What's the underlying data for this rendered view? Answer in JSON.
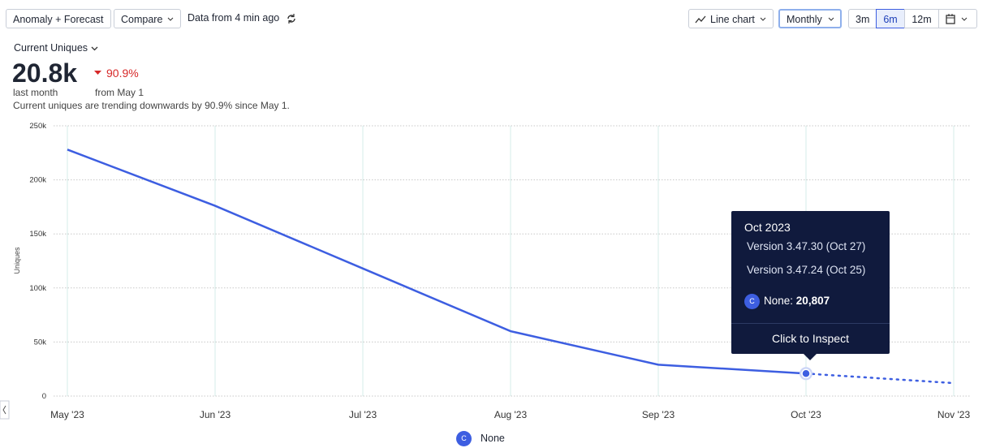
{
  "toolbar": {
    "mode": "Anomaly + Forecast",
    "compare": "Compare",
    "freshness": "Data from 4 min ago",
    "chart_type": "Line chart",
    "interval": "Monthly",
    "ranges": [
      "3m",
      "6m",
      "12m"
    ]
  },
  "metric": {
    "name": "Current Uniques",
    "value": "20.8k",
    "change": "90.9%",
    "value_caption": "last month",
    "change_caption": "from May 1",
    "summary": "Current uniques are trending downwards by 90.9% since May 1."
  },
  "tooltip": {
    "title": "Oct 2023",
    "lines": [
      "Version 3.47.30 (Oct 27)",
      "Version 3.47.24 (Oct 25)"
    ],
    "badge": "C",
    "series_label": "None:",
    "value_label": "20,807",
    "action": "Click to Inspect"
  },
  "chart_data": {
    "type": "line",
    "y_label": "Uniques",
    "categories": [
      "May '23",
      "Jun '23",
      "Jul '23",
      "Aug '23",
      "Sep '23",
      "Oct '23",
      "Nov '23"
    ],
    "series": [
      {
        "name": "None",
        "badge": "C",
        "color": "#3d5ee1",
        "values": [
          228000,
          176000,
          118000,
          60000,
          29000,
          20807,
          null
        ],
        "forecast_values": [
          null,
          null,
          null,
          null,
          null,
          20807,
          12000
        ]
      }
    ],
    "ylim": [
      0,
      250000
    ],
    "yticks": [
      0,
      {
        "value": 50000,
        "label": "50k"
      },
      {
        "value": 100000,
        "label": "100k"
      },
      {
        "value": 150000,
        "label": "150k"
      },
      {
        "value": 200000,
        "label": "200k"
      },
      {
        "value": 250000,
        "label": "250k"
      }
    ],
    "grid": true
  }
}
